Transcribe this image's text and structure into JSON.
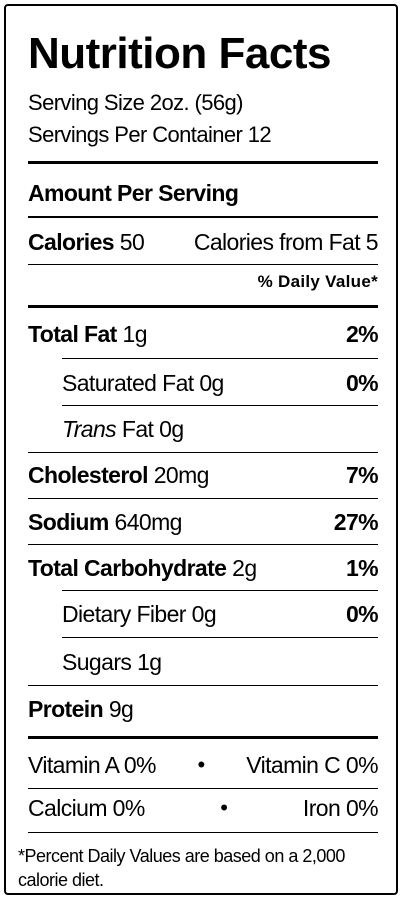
{
  "title": "Nutrition Facts",
  "serving_size": "Serving Size 2oz. (56g)",
  "servings_per_container": "Servings Per Container 12",
  "amount_per_serving": "Amount Per Serving",
  "calories": {
    "label": "Calories",
    "value": "50",
    "from_fat": "Calories from Fat 5"
  },
  "daily_value_header": "% Daily Value*",
  "nutrients": {
    "total_fat": {
      "label": "Total Fat",
      "amount": "1g",
      "dv": "2%"
    },
    "saturated_fat": {
      "label": "Saturated Fat",
      "amount": "0g",
      "dv": "0%"
    },
    "trans_fat": {
      "label": "Trans",
      "suffix": "Fat",
      "amount": "0g"
    },
    "cholesterol": {
      "label": "Cholesterol",
      "amount": "20mg",
      "dv": "7%"
    },
    "sodium": {
      "label": "Sodium",
      "amount": "640mg",
      "dv": "27%"
    },
    "total_carbohydrate": {
      "label": "Total Carbohydrate",
      "amount": "2g",
      "dv": "1%"
    },
    "dietary_fiber": {
      "label": "Dietary Fiber",
      "amount": "0g",
      "dv": "0%"
    },
    "sugars": {
      "label": "Sugars",
      "amount": "1g"
    },
    "protein": {
      "label": "Protein",
      "amount": "9g"
    }
  },
  "vitamins": {
    "vitamin_a": "Vitamin A 0%",
    "vitamin_c": "Vitamin C 0%",
    "calcium": "Calcium 0%",
    "iron": "Iron 0%",
    "separator": "•"
  },
  "footnote": "*Percent Daily Values are based on a 2,000 calorie diet."
}
